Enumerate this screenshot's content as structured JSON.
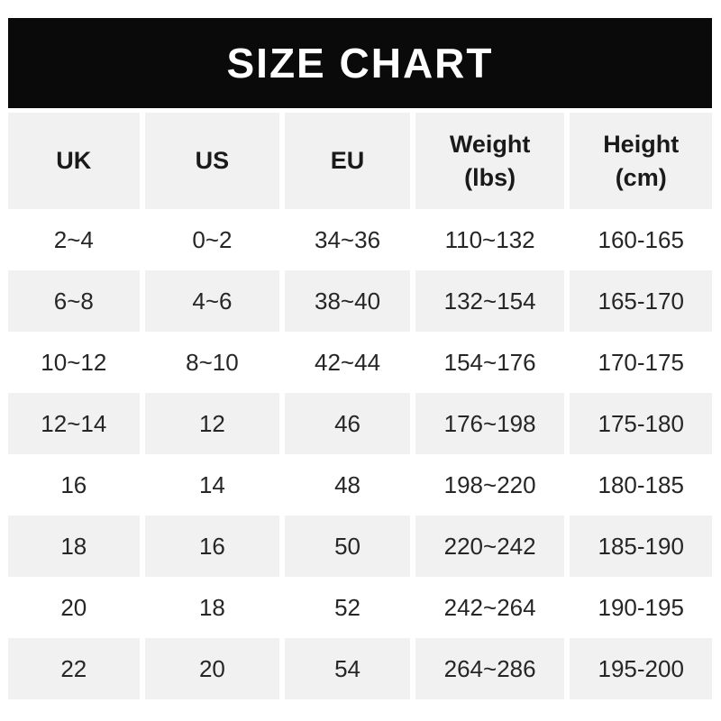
{
  "banner": {
    "title": "SIZE CHART"
  },
  "header": {
    "uk": "UK",
    "us": "US",
    "eu": "EU",
    "weight_line1": "Weight",
    "weight_line2": "(lbs)",
    "height_line1": "Height",
    "height_line2": "(cm)"
  },
  "chart_data": {
    "type": "table",
    "title": "SIZE CHART",
    "columns": [
      "UK",
      "US",
      "EU",
      "Weight (lbs)",
      "Height (cm)"
    ],
    "rows": [
      [
        "2~4",
        "0~2",
        "34~36",
        "110~132",
        "160-165"
      ],
      [
        "6~8",
        "4~6",
        "38~40",
        "132~154",
        "165-170"
      ],
      [
        "10~12",
        "8~10",
        "42~44",
        "154~176",
        "170-175"
      ],
      [
        "12~14",
        "12",
        "46",
        "176~198",
        "175-180"
      ],
      [
        "16",
        "14",
        "48",
        "198~220",
        "180-185"
      ],
      [
        "18",
        "16",
        "50",
        "220~242",
        "185-190"
      ],
      [
        "20",
        "18",
        "52",
        "242~264",
        "190-195"
      ],
      [
        "22",
        "20",
        "54",
        "264~286",
        "195-200"
      ]
    ],
    "layout": {
      "row_striping": "header gray, then alternating white/gray",
      "grid": "white gaps between columns"
    }
  },
  "colors": {
    "banner_bg": "#0a0a0a",
    "banner_text": "#ffffff",
    "row_alt_bg": "#f2f1f2",
    "row_bg": "#ffffff",
    "header_text": "#1a1a1a",
    "cell_text": "#262626"
  }
}
